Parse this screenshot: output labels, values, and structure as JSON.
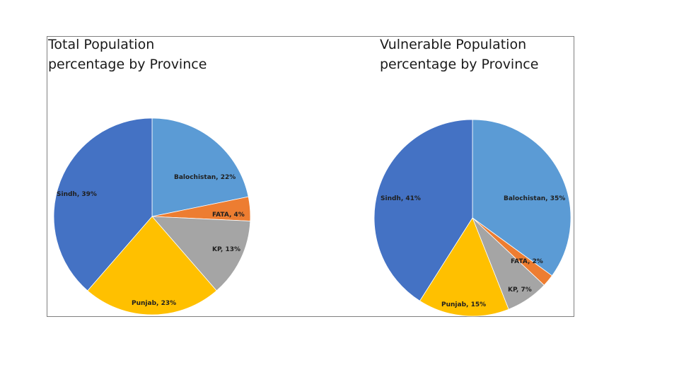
{
  "chart_data": [
    {
      "type": "pie",
      "title_lines": [
        "Total Population",
        "percentage by Province"
      ],
      "slices": [
        {
          "label": "Balochistan, 22%",
          "value": 22,
          "color": "#5b9bd5"
        },
        {
          "label": "FATA, 4%",
          "value": 4,
          "color": "#ed7d31"
        },
        {
          "label": "KP, 13%",
          "value": 13,
          "color": "#a5a5a5"
        },
        {
          "label": "Punjab, 23%",
          "value": 23,
          "color": "#ffc000"
        },
        {
          "label": "Sindh, 39%",
          "value": 39,
          "color": "#4472c4"
        }
      ]
    },
    {
      "type": "pie",
      "title_lines": [
        "Vulnerable Population",
        "percentage by Province"
      ],
      "slices": [
        {
          "label": "Balochistan, 35%",
          "value": 35,
          "color": "#5b9bd5"
        },
        {
          "label": "FATA, 2%",
          "value": 2,
          "color": "#ed7d31"
        },
        {
          "label": "KP, 7%",
          "value": 7,
          "color": "#a5a5a5"
        },
        {
          "label": "Punjab, 15%",
          "value": 15,
          "color": "#ffc000"
        },
        {
          "label": "Sindh, 41%",
          "value": 41,
          "color": "#4472c4"
        }
      ]
    }
  ]
}
